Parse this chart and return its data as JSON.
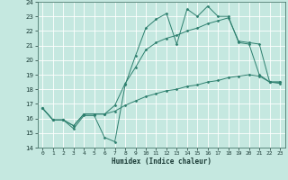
{
  "xlabel": "Humidex (Indice chaleur)",
  "background_color": "#c5e8e0",
  "grid_color": "#ffffff",
  "line_color": "#2d7f6e",
  "xlim": [
    -0.5,
    23.5
  ],
  "ylim": [
    14,
    24
  ],
  "yticks": [
    14,
    15,
    16,
    17,
    18,
    19,
    20,
    21,
    22,
    23,
    24
  ],
  "xticks": [
    0,
    1,
    2,
    3,
    4,
    5,
    6,
    7,
    8,
    9,
    10,
    11,
    12,
    13,
    14,
    15,
    16,
    17,
    18,
    19,
    20,
    21,
    22,
    23
  ],
  "line1_x": [
    0,
    1,
    2,
    3,
    4,
    5,
    6,
    7,
    8,
    9,
    10,
    11,
    12,
    13,
    14,
    15,
    16,
    17,
    18,
    19,
    20,
    21,
    22,
    23
  ],
  "line1_y": [
    16.7,
    15.9,
    15.9,
    15.3,
    16.2,
    16.2,
    14.7,
    14.4,
    18.3,
    20.3,
    22.2,
    22.8,
    23.2,
    21.1,
    23.5,
    23.0,
    23.7,
    23.0,
    23.0,
    21.2,
    21.1,
    19.0,
    18.5,
    18.5
  ],
  "line2_x": [
    0,
    1,
    2,
    3,
    4,
    5,
    6,
    7,
    8,
    9,
    10,
    11,
    12,
    13,
    14,
    15,
    16,
    17,
    18,
    19,
    20,
    21,
    22,
    23
  ],
  "line2_y": [
    16.7,
    15.9,
    15.9,
    15.5,
    16.3,
    16.3,
    16.3,
    16.9,
    18.4,
    19.5,
    20.7,
    21.2,
    21.5,
    21.7,
    22.0,
    22.2,
    22.5,
    22.7,
    22.9,
    21.3,
    21.2,
    21.1,
    18.5,
    18.5
  ],
  "line3_x": [
    0,
    1,
    2,
    3,
    4,
    5,
    6,
    7,
    8,
    9,
    10,
    11,
    12,
    13,
    14,
    15,
    16,
    17,
    18,
    19,
    20,
    21,
    22,
    23
  ],
  "line3_y": [
    16.7,
    15.9,
    15.9,
    15.5,
    16.3,
    16.3,
    16.3,
    16.5,
    16.9,
    17.2,
    17.5,
    17.7,
    17.9,
    18.0,
    18.2,
    18.3,
    18.5,
    18.6,
    18.8,
    18.9,
    19.0,
    18.9,
    18.5,
    18.4
  ]
}
